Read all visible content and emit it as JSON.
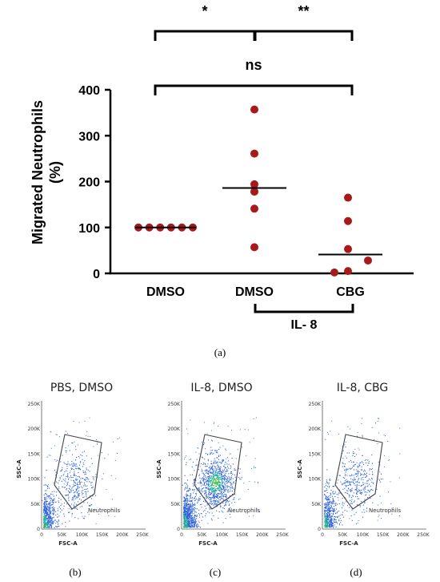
{
  "colors": {
    "points": "#a81919",
    "axis": "#000000",
    "gate": "#444444"
  },
  "chart_data": [
    {
      "type": "scatter",
      "panel": "(a)",
      "ylabel_line1": "Migrated Neutrophils",
      "ylabel_line2": "(%)",
      "ylim": [
        0,
        400
      ],
      "yticks": [
        "0",
        "100",
        "200",
        "300",
        "400"
      ],
      "categories": [
        "DMSO",
        "DMSO",
        "CBG"
      ],
      "group_label": "IL- 8",
      "series": [
        {
          "values": [
            100,
            100,
            100,
            100,
            100,
            100
          ],
          "mean": 100
        },
        {
          "values": [
            357,
            261,
            194,
            178,
            141,
            57
          ],
          "mean": 186
        },
        {
          "values": [
            165,
            114,
            53,
            28,
            5,
            2
          ],
          "mean": 41
        }
      ],
      "significance": [
        {
          "label": "*",
          "from": 0,
          "to": 1
        },
        {
          "label": "**",
          "from": 1,
          "to": 2
        },
        {
          "label": "ns",
          "from": 0,
          "to": 2
        }
      ]
    },
    {
      "type": "scatter",
      "panel": "(b)",
      "title": "PBS, DMSO",
      "xlabel": "FSC-A",
      "ylabel": "SSC-A",
      "gate_label": "Neutrophils",
      "density": "low"
    },
    {
      "type": "scatter",
      "panel": "(c)",
      "title": "IL-8, DMSO",
      "xlabel": "FSC-A",
      "ylabel": "SSC-A",
      "gate_label": "Neutrophils",
      "density": "high"
    },
    {
      "type": "scatter",
      "panel": "(d)",
      "title": "IL-8, CBG",
      "xlabel": "FSC-A",
      "ylabel": "SSC-A",
      "gate_label": "Neutrophils",
      "density": "low"
    }
  ],
  "flow_axes": {
    "x_ticks": [
      "0",
      "50K",
      "100K",
      "150K",
      "200K",
      "250K"
    ],
    "y_ticks": [
      "0",
      "50K",
      "100K",
      "150K",
      "200K",
      "250K"
    ]
  }
}
